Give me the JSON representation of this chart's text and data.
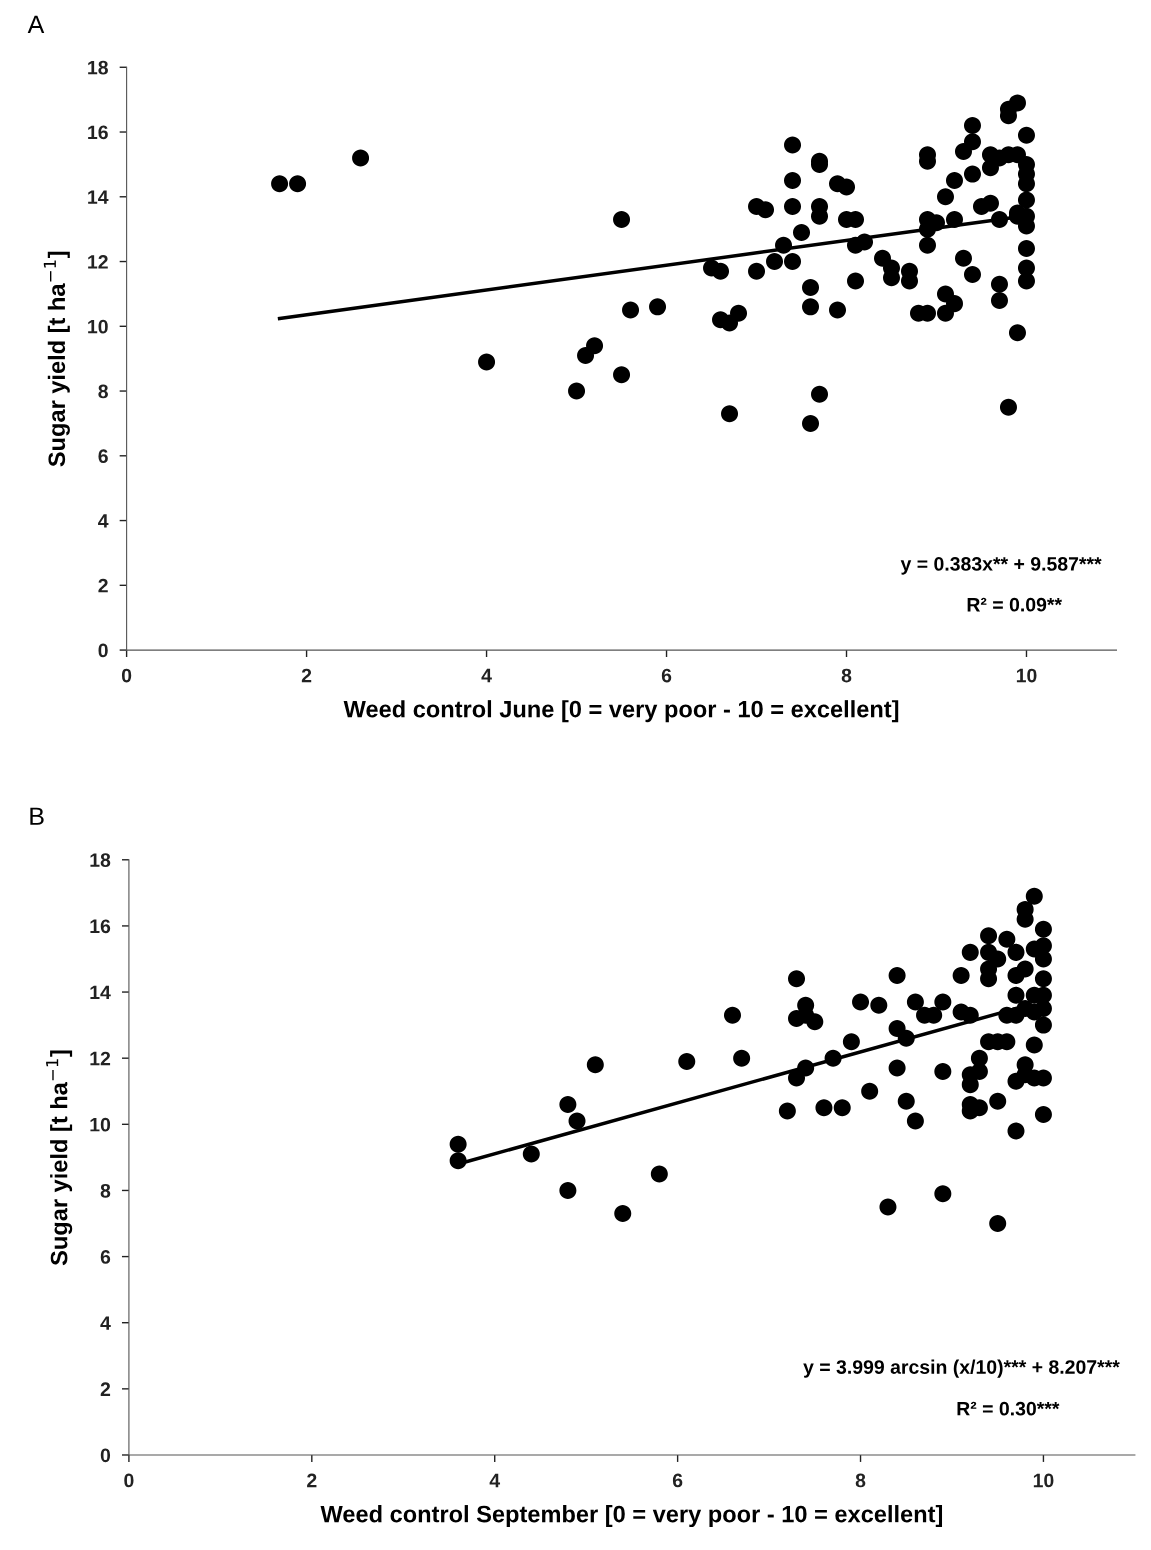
{
  "chart_data": [
    {
      "type": "scatter",
      "title": "A",
      "xlabel": "Weed control June [0 = very poor - 10 = excellent]",
      "ylabel": "Sugar yield [t ha$^{−1}$]",
      "xlim": [
        0,
        11
      ],
      "xticks": [
        0,
        2,
        4,
        6,
        8,
        10
      ],
      "ylim": [
        0,
        18
      ],
      "yticks": [
        0,
        2,
        4,
        6,
        8,
        10,
        12,
        14,
        16,
        18
      ],
      "grid": false,
      "legend": false,
      "annotations": [
        "y = 0.383x** + 9.587***",
        "R² = 0.09**"
      ],
      "series": [
        {
          "marker": "circle",
          "color": "#000000",
          "x": [
            1.7,
            1.9,
            2.6,
            4.0,
            5.0,
            5.1,
            5.2,
            5.5,
            5.5,
            5.6,
            5.9,
            6.5,
            6.6,
            6.6,
            6.7,
            6.8,
            6.7,
            7.0,
            7.1,
            7.0,
            7.2,
            7.3,
            7.4,
            7.4,
            7.4,
            7.4,
            7.5,
            7.6,
            7.6,
            7.6,
            7.7,
            7.7,
            7.7,
            7.7,
            7.7,
            7.9,
            8.0,
            7.9,
            8.0,
            8.1,
            8.1,
            8.2,
            8.1,
            8.4,
            8.5,
            8.5,
            8.7,
            8.7,
            8.8,
            8.9,
            8.9,
            8.9,
            8.9,
            8.9,
            8.9,
            9.0,
            9.1,
            9.2,
            9.1,
            9.1,
            9.2,
            9.2,
            9.3,
            9.3,
            9.4,
            9.4,
            9.4,
            9.4,
            9.5,
            9.6,
            9.6,
            9.6,
            9.7,
            9.7,
            9.7,
            9.7,
            9.8,
            9.8,
            9.9,
            9.8,
            9.9,
            9.9,
            9.9,
            9.9,
            9.8,
            10.0,
            10.0,
            10.0,
            10.0,
            10.0,
            10.0,
            10.0,
            10.0,
            10.0,
            10.0
          ],
          "values": [
            14.4,
            14.4,
            15.2,
            8.9,
            8.0,
            9.1,
            9.4,
            8.5,
            13.3,
            10.5,
            10.6,
            11.8,
            11.7,
            10.2,
            10.1,
            10.4,
            7.3,
            13.7,
            13.6,
            11.7,
            12.0,
            12.5,
            15.6,
            14.5,
            13.7,
            12.0,
            12.9,
            11.2,
            10.6,
            7.0,
            15.1,
            15.0,
            13.7,
            13.4,
            7.9,
            14.4,
            14.3,
            10.5,
            13.3,
            13.3,
            12.5,
            12.6,
            11.4,
            12.1,
            11.8,
            11.5,
            11.7,
            11.4,
            10.4,
            10.4,
            15.3,
            15.1,
            13.3,
            13.0,
            12.5,
            13.2,
            14.0,
            14.5,
            11.0,
            10.4,
            13.3,
            10.7,
            15.4,
            12.1,
            16.2,
            15.7,
            14.7,
            11.6,
            13.7,
            15.3,
            14.9,
            13.8,
            15.2,
            13.3,
            11.3,
            10.8,
            16.7,
            16.5,
            16.9,
            15.3,
            15.3,
            13.5,
            13.4,
            9.8,
            7.5,
            15.9,
            15.0,
            14.7,
            14.4,
            13.9,
            13.4,
            13.1,
            12.4,
            11.8,
            11.4
          ]
        },
        {
          "type": "line",
          "marker": "none",
          "line_style": "solid",
          "color": "#000000",
          "x": [
            1.7,
            9.8
          ],
          "values": [
            10.24,
            13.34
          ]
        }
      ]
    },
    {
      "type": "scatter",
      "title": "B",
      "xlabel": "Weed control September [0 = very poor - 10 = excellent]",
      "ylabel": "Sugar yield [t ha$^{−1}$]",
      "xlim": [
        0,
        11
      ],
      "xticks": [
        0,
        2,
        4,
        6,
        8,
        10
      ],
      "ylim": [
        0,
        18
      ],
      "yticks": [
        0,
        2,
        4,
        6,
        8,
        10,
        12,
        14,
        16,
        18
      ],
      "grid": false,
      "legend": false,
      "annotations": [
        "y = 3.999 arcsin (x/10)*** + 8.207***",
        "R² = 0.30***"
      ],
      "series": [
        {
          "marker": "circle",
          "color": "#000000",
          "x": [
            3.6,
            3.6,
            4.4,
            4.8,
            4.9,
            4.8,
            5.1,
            5.4,
            5.8,
            6.1,
            6.6,
            6.7,
            7.2,
            7.3,
            7.3,
            7.3,
            7.4,
            7.4,
            7.5,
            7.4,
            7.6,
            7.7,
            7.8,
            7.9,
            8.0,
            8.1,
            8.2,
            8.3,
            8.4,
            8.4,
            8.4,
            8.5,
            8.5,
            8.6,
            8.6,
            8.7,
            8.8,
            8.9,
            8.9,
            8.9,
            9.1,
            9.1,
            9.2,
            9.2,
            9.2,
            9.2,
            9.2,
            9.2,
            9.3,
            9.3,
            9.3,
            9.4,
            9.4,
            9.4,
            9.4,
            9.4,
            9.5,
            9.5,
            9.5,
            9.5,
            9.6,
            9.6,
            9.6,
            9.7,
            9.7,
            9.7,
            9.7,
            9.7,
            9.7,
            9.8,
            9.8,
            9.8,
            9.8,
            9.8,
            9.8,
            9.9,
            9.9,
            9.9,
            9.9,
            9.9,
            9.9,
            10.0,
            10.0,
            10.0,
            10.0,
            10.0,
            10.0,
            10.0,
            10.0,
            10.0
          ],
          "values": [
            9.4,
            8.9,
            9.1,
            10.6,
            10.1,
            8.0,
            11.8,
            7.3,
            8.5,
            11.9,
            13.3,
            12.0,
            10.4,
            14.4,
            13.2,
            11.4,
            13.6,
            13.3,
            13.1,
            11.7,
            10.5,
            12.0,
            10.5,
            12.5,
            13.7,
            11.0,
            13.6,
            7.5,
            14.5,
            12.9,
            11.7,
            12.6,
            10.7,
            13.7,
            10.1,
            13.3,
            13.3,
            13.7,
            11.6,
            7.9,
            14.5,
            13.4,
            15.2,
            13.3,
            11.5,
            11.2,
            10.6,
            10.4,
            12.0,
            11.6,
            10.5,
            15.7,
            15.2,
            14.7,
            14.4,
            12.5,
            15.0,
            12.5,
            10.7,
            7.0,
            15.6,
            13.3,
            12.5,
            15.2,
            14.5,
            13.9,
            13.3,
            11.3,
            9.8,
            16.5,
            16.2,
            14.7,
            13.5,
            11.8,
            11.5,
            16.9,
            15.3,
            13.9,
            13.4,
            12.4,
            11.4,
            15.9,
            15.4,
            15.0,
            14.4,
            13.9,
            13.5,
            13.0,
            11.4,
            10.3
          ]
        },
        {
          "type": "line",
          "marker": "none",
          "line_style": "solid",
          "color": "#000000",
          "x": [
            3.6,
            9.7
          ],
          "values": [
            8.8,
            13.5
          ]
        }
      ]
    }
  ]
}
